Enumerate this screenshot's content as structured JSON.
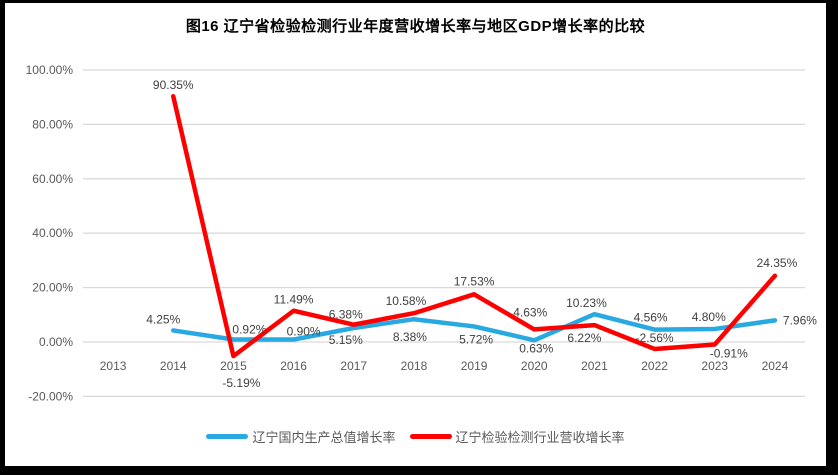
{
  "title": "图16 辽宁省检验检测行业年度营收增长率与地区GDP增长率的比较",
  "chart_data": {
    "type": "line",
    "title": "图16 辽宁省检验检测行业年度营收增长率与地区GDP增长率的比较",
    "categories": [
      "2013",
      "2014",
      "2015",
      "2016",
      "2017",
      "2018",
      "2019",
      "2020",
      "2021",
      "2022",
      "2023",
      "2024"
    ],
    "series": [
      {
        "name": "辽宁国内生产总值增长率",
        "color": "#29A9E1",
        "values": [
          null,
          4.25,
          0.92,
          0.9,
          5.15,
          8.38,
          5.72,
          0.63,
          10.23,
          4.56,
          4.8,
          7.96
        ]
      },
      {
        "name": "辽宁检验检测行业营收增长率",
        "color": "#FF0000",
        "values": [
          null,
          90.35,
          -5.19,
          11.49,
          6.38,
          10.58,
          17.53,
          4.63,
          6.22,
          -2.56,
          -0.91,
          24.35
        ]
      }
    ],
    "xlabel": "",
    "ylabel": "",
    "ylim": [
      -20,
      100
    ],
    "ytick_step": 20,
    "ytick_format": "0.00%",
    "grid": true,
    "gridline_color": "#D9D9D9",
    "axis_text_color": "#595959",
    "label_text_color": "#404040",
    "data_labels": true,
    "legend_position": "bottom"
  },
  "frame_color": "#000000",
  "background_color": "#FFFFFF"
}
